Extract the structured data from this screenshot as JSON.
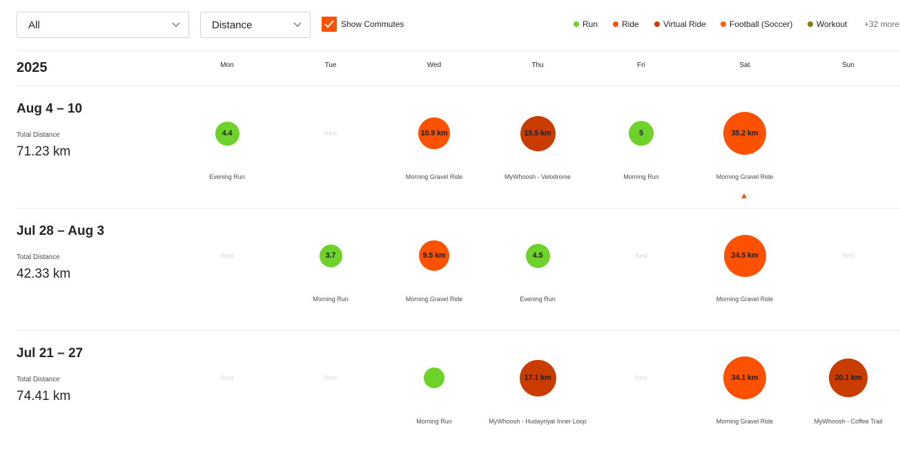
{
  "filters": {
    "sport": "All",
    "metric": "Distance",
    "commutes_label": "Show Commutes",
    "commutes_checked": true
  },
  "legend": {
    "items": [
      {
        "label": "Run",
        "color": "#6fd22b"
      },
      {
        "label": "Ride",
        "color": "#fc5200"
      },
      {
        "label": "Virtual Ride",
        "color": "#c93c00"
      },
      {
        "label": "Football (Soccer)",
        "color": "#fc5a0f"
      },
      {
        "label": "Workout",
        "color": "#8a7a12"
      }
    ],
    "more": "+32 more"
  },
  "calendar": {
    "year": "2025",
    "days": [
      "Mon",
      "Tue",
      "Wed",
      "Thu",
      "Fri",
      "Sat",
      "Sun"
    ],
    "total_label": "Total Distance",
    "rest_label": "Rest"
  },
  "weeks": [
    {
      "range": "Aug 4 – 10",
      "total": "71.23 km",
      "days": [
        {
          "type": "run",
          "value": 4.4,
          "label": "4.4",
          "name": "Evening Run"
        },
        {
          "type": "rest"
        },
        {
          "type": "ride",
          "value": 10.9,
          "label": "10.9 km",
          "name": "Morning Gravel Ride"
        },
        {
          "type": "virtual",
          "value": 15.5,
          "label": "15.5 km",
          "name": "MyWhoosh - Velodrome"
        },
        {
          "type": "run",
          "value": 5,
          "label": "5",
          "name": "Morning Run"
        },
        {
          "type": "ride",
          "value": 35.2,
          "label": "35.2 km",
          "name": "Morning Gravel Ride",
          "marker": true
        },
        {
          "type": "empty"
        }
      ]
    },
    {
      "range": "Jul 28 – Aug 3",
      "total": "42.33 km",
      "days": [
        {
          "type": "rest"
        },
        {
          "type": "run",
          "value": 3.7,
          "label": "3.7",
          "name": "Morning Run"
        },
        {
          "type": "ride",
          "value": 9.5,
          "label": "9.5 km",
          "name": "Morning Gravel Ride"
        },
        {
          "type": "run",
          "value": 4.5,
          "label": "4.5",
          "name": "Evening Run"
        },
        {
          "type": "rest"
        },
        {
          "type": "ride",
          "value": 24.5,
          "label": "24.5 km",
          "name": "Morning Gravel Ride"
        },
        {
          "type": "rest"
        }
      ]
    },
    {
      "range": "Jul 21 – 27",
      "total": "74.41 km",
      "days": [
        {
          "type": "rest"
        },
        {
          "type": "rest"
        },
        {
          "type": "run",
          "value": 2.5,
          "label": "",
          "name": "Morning Run"
        },
        {
          "type": "virtual",
          "value": 17.1,
          "label": "17.1 km",
          "name": "MyWhoosh - Hudayriyat Inner Loop"
        },
        {
          "type": "rest"
        },
        {
          "type": "ride",
          "value": 34.1,
          "label": "34.1 km",
          "name": "Morning Gravel Ride"
        },
        {
          "type": "virtual",
          "value": 20.1,
          "label": "20.1 km",
          "name": "MyWhoosh - Coffee Trail"
        }
      ]
    }
  ]
}
